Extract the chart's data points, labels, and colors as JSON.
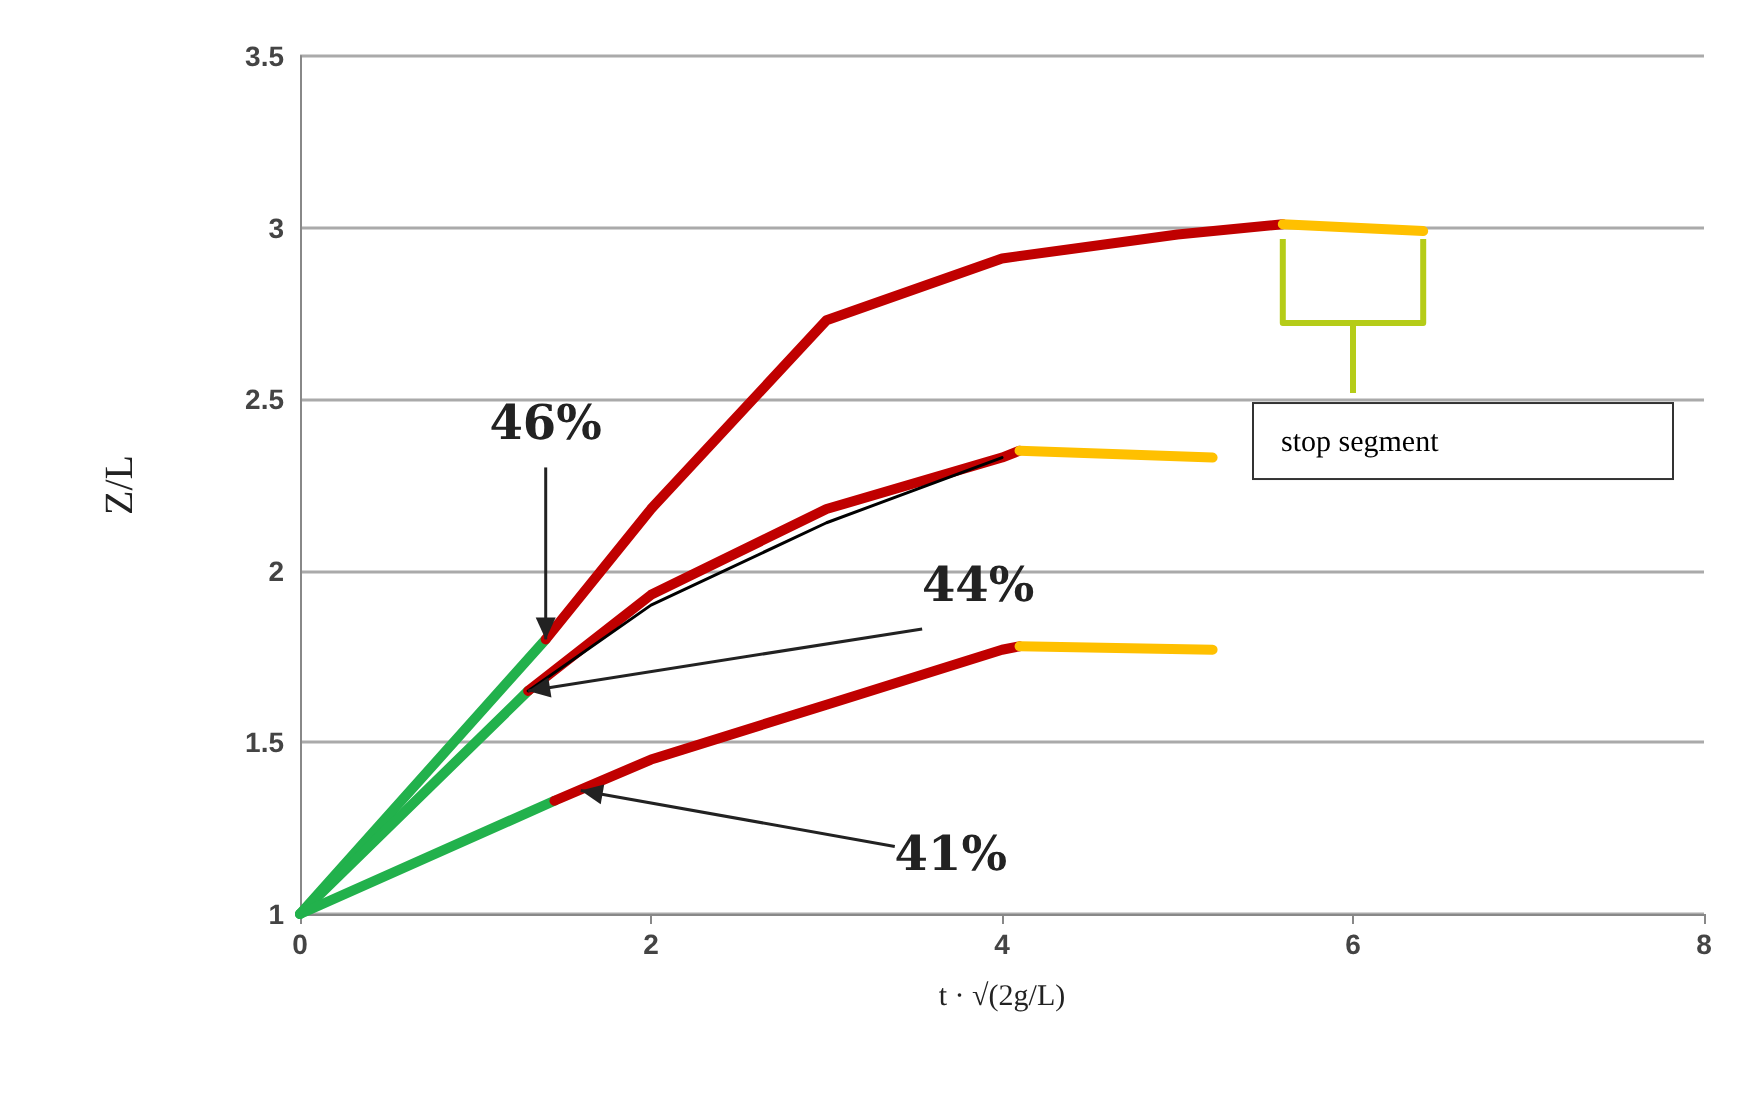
{
  "chart_data": {
    "type": "line",
    "xlabel": "t · √(2g/L)",
    "ylabel": "Z/L",
    "xlim": [
      0,
      8
    ],
    "xticks": [
      0,
      2,
      4,
      6,
      8
    ],
    "ylim": [
      1,
      3.5
    ],
    "yticks": [
      1,
      1.5,
      2,
      2.5,
      3,
      3.5
    ],
    "grid": "y",
    "marker": "none",
    "line_style": "solid",
    "series": [
      {
        "color": "#22b14c",
        "x": [
          0,
          1.4
        ],
        "values": [
          1,
          1.8
        ]
      },
      {
        "color": "#c00000",
        "x": [
          1.4,
          2,
          3,
          4,
          5,
          5.6
        ],
        "values": [
          1.8,
          2.18,
          2.73,
          2.91,
          2.98,
          3.01
        ]
      },
      {
        "color": "#ffc000",
        "x": [
          5.6,
          6.4
        ],
        "values": [
          3.01,
          2.99
        ]
      },
      {
        "color": "#22b14c",
        "x": [
          0,
          1.3
        ],
        "values": [
          1,
          1.65
        ]
      },
      {
        "color": "#c00000",
        "x": [
          1.3,
          2,
          3,
          4,
          4.1
        ],
        "values": [
          1.65,
          1.93,
          2.18,
          2.33,
          2.35
        ]
      },
      {
        "color": "#000000",
        "x": [
          1.3,
          2,
          3,
          4
        ],
        "values": [
          1.65,
          1.9,
          2.14,
          2.33
        ]
      },
      {
        "color": "#ffc000",
        "x": [
          4.1,
          5.2
        ],
        "values": [
          2.35,
          2.33
        ]
      },
      {
        "color": "#22b14c",
        "x": [
          0,
          1.45
        ],
        "values": [
          1,
          1.33
        ]
      },
      {
        "color": "#c00000",
        "x": [
          1.45,
          2,
          3,
          4,
          4.1
        ],
        "values": [
          1.33,
          1.45,
          1.61,
          1.77,
          1.78
        ]
      },
      {
        "color": "#ffc000",
        "x": [
          4.1,
          5.2
        ],
        "values": [
          1.78,
          1.77
        ]
      }
    ],
    "annotations": [
      {
        "text": "46%",
        "x": 1.4,
        "y": 1.8
      },
      {
        "text": "44%",
        "x": 1.3,
        "y": 1.65
      },
      {
        "text": "41%",
        "x": 1.6,
        "y": 1.36
      },
      "stop segment"
    ]
  }
}
